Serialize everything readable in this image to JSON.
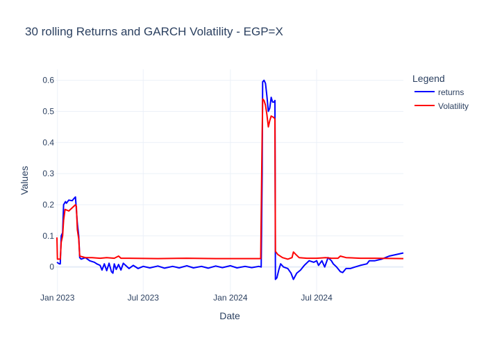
{
  "chart_data": {
    "type": "line",
    "title": "30 rolling Returns and GARCH Volatility - EGP=X",
    "xlabel": "Date",
    "ylabel": "Values",
    "x_ticks": [
      {
        "label": "Jan 2023",
        "date": "2023-01-01"
      },
      {
        "label": "Jul 2023",
        "date": "2023-07-01"
      },
      {
        "label": "Jan 2024",
        "date": "2024-01-01"
      },
      {
        "label": "Jul 2024",
        "date": "2024-07-01"
      }
    ],
    "y_ticks": [
      0,
      0.1,
      0.2,
      0.3,
      0.4,
      0.5,
      0.6
    ],
    "xlim": [
      "2022-12-28",
      "2024-12-31"
    ],
    "ylim": [
      -0.09,
      0.635
    ],
    "grid": true,
    "legend": {
      "title": "Legend",
      "placement": "top-right"
    },
    "series": [
      {
        "name": "returns",
        "color": "#0000ff",
        "points": [
          [
            "2022-12-31",
            0.015
          ],
          [
            "2023-01-05",
            0.01
          ],
          [
            "2023-01-07",
            0.01
          ],
          [
            "2023-01-09",
            0.1
          ],
          [
            "2023-01-12",
            0.11
          ],
          [
            "2023-01-14",
            0.2
          ],
          [
            "2023-01-18",
            0.21
          ],
          [
            "2023-01-20",
            0.205
          ],
          [
            "2023-01-25",
            0.215
          ],
          [
            "2023-02-01",
            0.213
          ],
          [
            "2023-02-05",
            0.22
          ],
          [
            "2023-02-08",
            0.225
          ],
          [
            "2023-02-12",
            0.14
          ],
          [
            "2023-02-15",
            0.1
          ],
          [
            "2023-02-17",
            0.03
          ],
          [
            "2023-02-20",
            0.025
          ],
          [
            "2023-03-01",
            0.03
          ],
          [
            "2023-03-10",
            0.02
          ],
          [
            "2023-03-20",
            0.015
          ],
          [
            "2023-03-25",
            0.01
          ],
          [
            "2023-04-01",
            0.005
          ],
          [
            "2023-04-05",
            -0.01
          ],
          [
            "2023-04-10",
            0.01
          ],
          [
            "2023-04-15",
            -0.012
          ],
          [
            "2023-04-20",
            0.012
          ],
          [
            "2023-04-25",
            -0.015
          ],
          [
            "2023-04-28",
            -0.02
          ],
          [
            "2023-05-01",
            0.01
          ],
          [
            "2023-05-05",
            -0.008
          ],
          [
            "2023-05-10",
            0.008
          ],
          [
            "2023-05-15",
            -0.01
          ],
          [
            "2023-05-20",
            0.012
          ],
          [
            "2023-06-01",
            -0.005
          ],
          [
            "2023-06-10",
            0.005
          ],
          [
            "2023-06-20",
            -0.005
          ],
          [
            "2023-07-01",
            0.002
          ],
          [
            "2023-07-15",
            -0.003
          ],
          [
            "2023-08-01",
            0.003
          ],
          [
            "2023-08-15",
            -0.004
          ],
          [
            "2023-09-01",
            0.002
          ],
          [
            "2023-09-15",
            -0.003
          ],
          [
            "2023-10-01",
            0.004
          ],
          [
            "2023-10-15",
            -0.003
          ],
          [
            "2023-11-01",
            0.002
          ],
          [
            "2023-11-15",
            -0.004
          ],
          [
            "2023-12-01",
            0.003
          ],
          [
            "2023-12-15",
            -0.002
          ],
          [
            "2024-01-01",
            0.004
          ],
          [
            "2024-01-15",
            -0.003
          ],
          [
            "2024-02-01",
            0.002
          ],
          [
            "2024-02-15",
            -0.002
          ],
          [
            "2024-03-01",
            0.002
          ],
          [
            "2024-03-06",
            0.0
          ],
          [
            "2024-03-08",
            0.3
          ],
          [
            "2024-03-09",
            0.595
          ],
          [
            "2024-03-12",
            0.6
          ],
          [
            "2024-03-15",
            0.59
          ],
          [
            "2024-03-18",
            0.55
          ],
          [
            "2024-03-21",
            0.5
          ],
          [
            "2024-03-24",
            0.51
          ],
          [
            "2024-03-27",
            0.545
          ],
          [
            "2024-03-30",
            0.53
          ],
          [
            "2024-04-02",
            0.53
          ],
          [
            "2024-04-04",
            0.535
          ],
          [
            "2024-04-05",
            -0.04
          ],
          [
            "2024-04-08",
            -0.035
          ],
          [
            "2024-04-12",
            -0.01
          ],
          [
            "2024-04-16",
            0.01
          ],
          [
            "2024-04-22",
            0.0
          ],
          [
            "2024-05-01",
            -0.005
          ],
          [
            "2024-05-08",
            -0.02
          ],
          [
            "2024-05-13",
            -0.04
          ],
          [
            "2024-05-20",
            -0.02
          ],
          [
            "2024-05-28",
            -0.01
          ],
          [
            "2024-06-05",
            0.005
          ],
          [
            "2024-06-15",
            0.02
          ],
          [
            "2024-06-25",
            0.015
          ],
          [
            "2024-07-01",
            0.02
          ],
          [
            "2024-07-05",
            0.005
          ],
          [
            "2024-07-12",
            0.02
          ],
          [
            "2024-07-18",
            0.0
          ],
          [
            "2024-07-25",
            0.03
          ],
          [
            "2024-08-01",
            0.02
          ],
          [
            "2024-08-05",
            0.01
          ],
          [
            "2024-08-12",
            0.0
          ],
          [
            "2024-08-20",
            -0.015
          ],
          [
            "2024-08-25",
            -0.018
          ],
          [
            "2024-09-01",
            -0.005
          ],
          [
            "2024-09-10",
            -0.005
          ],
          [
            "2024-09-20",
            0.0
          ],
          [
            "2024-10-01",
            0.005
          ],
          [
            "2024-10-15",
            0.01
          ],
          [
            "2024-10-20",
            0.02
          ],
          [
            "2024-11-01",
            0.02
          ],
          [
            "2024-11-15",
            0.025
          ],
          [
            "2024-12-01",
            0.035
          ],
          [
            "2024-12-31",
            0.045
          ]
        ]
      },
      {
        "name": "Volatility",
        "color": "#ff0000",
        "points": [
          [
            "2022-12-31",
            0.095
          ],
          [
            "2023-01-01",
            0.025
          ],
          [
            "2023-01-07",
            0.025
          ],
          [
            "2023-01-09",
            0.08
          ],
          [
            "2023-01-12",
            0.1
          ],
          [
            "2023-01-14",
            0.15
          ],
          [
            "2023-01-17",
            0.185
          ],
          [
            "2023-01-25",
            0.18
          ],
          [
            "2023-02-01",
            0.19
          ],
          [
            "2023-02-08",
            0.2
          ],
          [
            "2023-02-10",
            0.195
          ],
          [
            "2023-02-12",
            0.12
          ],
          [
            "2023-02-15",
            0.09
          ],
          [
            "2023-02-17",
            0.035
          ],
          [
            "2023-03-01",
            0.03
          ],
          [
            "2023-03-15",
            0.03
          ],
          [
            "2023-04-01",
            0.028
          ],
          [
            "2023-04-15",
            0.03
          ],
          [
            "2023-05-01",
            0.028
          ],
          [
            "2023-05-10",
            0.035
          ],
          [
            "2023-05-15",
            0.028
          ],
          [
            "2023-06-01",
            0.028
          ],
          [
            "2023-08-01",
            0.027
          ],
          [
            "2023-10-01",
            0.028
          ],
          [
            "2023-12-01",
            0.027
          ],
          [
            "2024-02-01",
            0.027
          ],
          [
            "2024-03-05",
            0.027
          ],
          [
            "2024-03-07",
            0.3
          ],
          [
            "2024-03-09",
            0.54
          ],
          [
            "2024-03-12",
            0.535
          ],
          [
            "2024-03-15",
            0.52
          ],
          [
            "2024-03-18",
            0.49
          ],
          [
            "2024-03-21",
            0.45
          ],
          [
            "2024-03-24",
            0.47
          ],
          [
            "2024-03-27",
            0.485
          ],
          [
            "2024-04-02",
            0.48
          ],
          [
            "2024-04-04",
            0.475
          ],
          [
            "2024-04-05",
            0.05
          ],
          [
            "2024-04-10",
            0.04
          ],
          [
            "2024-04-20",
            0.03
          ],
          [
            "2024-05-01",
            0.025
          ],
          [
            "2024-05-10",
            0.03
          ],
          [
            "2024-05-13",
            0.048
          ],
          [
            "2024-05-18",
            0.04
          ],
          [
            "2024-05-25",
            0.03
          ],
          [
            "2024-06-10",
            0.028
          ],
          [
            "2024-07-01",
            0.028
          ],
          [
            "2024-07-20",
            0.03
          ],
          [
            "2024-08-01",
            0.028
          ],
          [
            "2024-08-15",
            0.028
          ],
          [
            "2024-08-20",
            0.035
          ],
          [
            "2024-09-01",
            0.03
          ],
          [
            "2024-10-01",
            0.028
          ],
          [
            "2024-11-01",
            0.028
          ],
          [
            "2024-12-31",
            0.027
          ]
        ]
      }
    ]
  }
}
